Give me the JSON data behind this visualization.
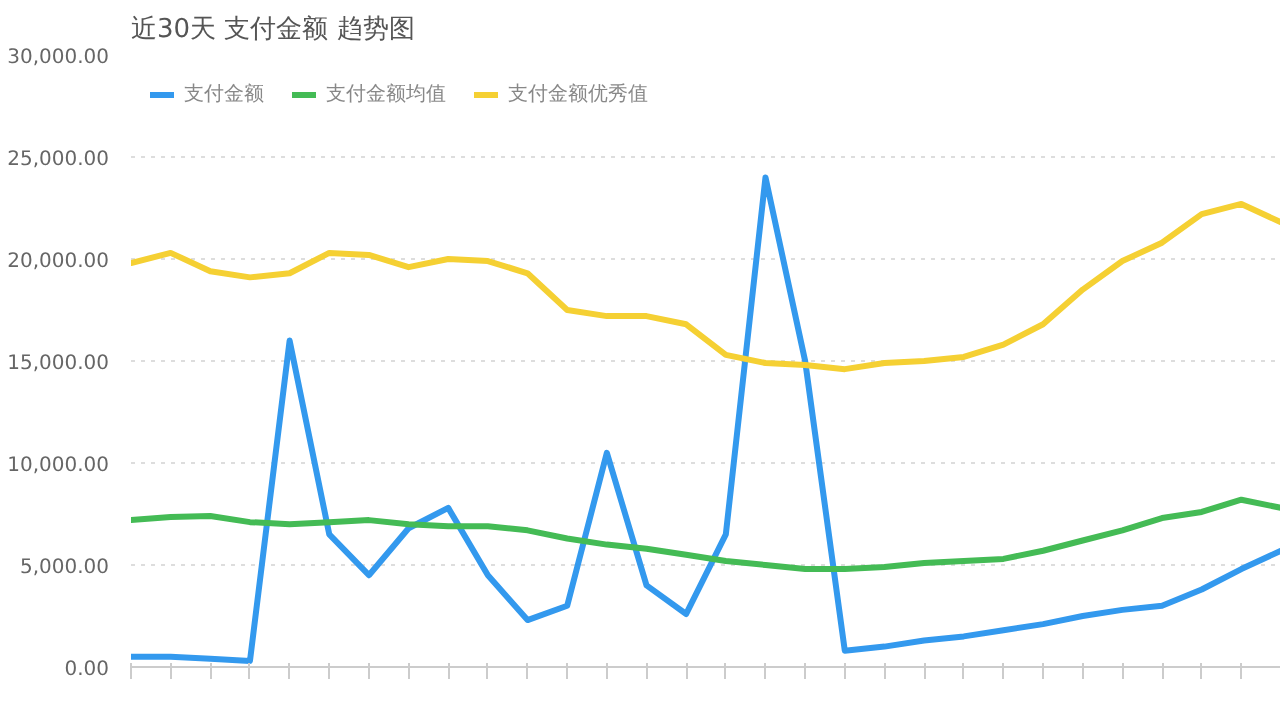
{
  "chart_data": {
    "type": "line",
    "title": "近30天 支付金额 趋势图",
    "categories": [
      null,
      null,
      null,
      null,
      null,
      null,
      null,
      null,
      null,
      null,
      null,
      null,
      null,
      null,
      null,
      null,
      null,
      null,
      null,
      null,
      null,
      null,
      null,
      null,
      null,
      null,
      null,
      null,
      null,
      null
    ],
    "series": [
      {
        "name": "支付金额",
        "color": "#3399ee",
        "values": [
          500,
          500,
          400,
          300,
          16000,
          6500,
          4500,
          6800,
          7800,
          4500,
          2300,
          3000,
          10500,
          4000,
          2600,
          6500,
          24000,
          15000,
          800,
          1000,
          1300,
          1500,
          1800,
          2100,
          2500,
          2800,
          3000,
          3800,
          4800,
          5700
        ]
      },
      {
        "name": "支付金额均值",
        "color": "#44bb55",
        "values": [
          7200,
          7350,
          7400,
          7100,
          7000,
          7100,
          7200,
          7000,
          6900,
          6900,
          6700,
          6300,
          6000,
          5800,
          5500,
          5200,
          5000,
          4800,
          4800,
          4900,
          5100,
          5200,
          5300,
          5700,
          6200,
          6700,
          7300,
          7600,
          8200,
          7800
        ]
      },
      {
        "name": "支付金额优秀值",
        "color": "#f5d033",
        "values": [
          19800,
          20300,
          19400,
          19100,
          19300,
          20300,
          20200,
          19600,
          20000,
          19900,
          19300,
          17500,
          17200,
          17200,
          16800,
          15300,
          14900,
          14800,
          14600,
          14900,
          15000,
          15200,
          15800,
          16800,
          18500,
          19900,
          20800,
          22200,
          22700,
          21800
        ]
      }
    ],
    "ylim": [
      0,
      30000
    ],
    "yticks": [
      {
        "value": 0,
        "label": "0.00"
      },
      {
        "value": 5000,
        "label": "5,000.00"
      },
      {
        "value": 10000,
        "label": "10,000.00"
      },
      {
        "value": 15000,
        "label": "15,000.00"
      },
      {
        "value": 20000,
        "label": "20,000.00"
      },
      {
        "value": 25000,
        "label": "25,000.00"
      },
      {
        "value": 30000,
        "label": "30,000.00"
      }
    ],
    "grid": "y",
    "legend": "top left",
    "tick_labels": "y",
    "marker": "none",
    "line_style": "solid"
  }
}
